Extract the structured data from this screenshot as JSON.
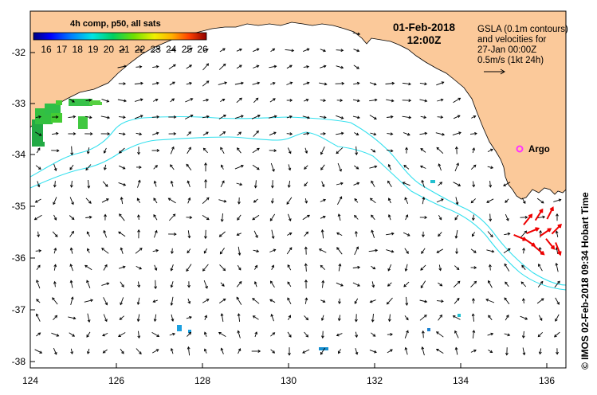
{
  "map": {
    "title": "4h comp, p50, all sats",
    "date": "01-Feb-2018",
    "time": "12:00Z",
    "info_lines": [
      "GSLA (0.1m contours)",
      "and velocities for",
      "27-Jan 00:00Z",
      "0.5m/s (1kt 24h)"
    ],
    "argo_label": "Argo",
    "credit": "© IMOS 02-Feb-2018 09:34 Hobart Time",
    "longitude_ticks": [
      "124",
      "126",
      "128",
      "130",
      "132",
      "134",
      "136"
    ],
    "latitude_ticks": [
      "-32",
      "-33",
      "-34",
      "-35",
      "-36",
      "-37",
      "-38"
    ],
    "colorbar": {
      "labels": [
        "16",
        "17",
        "18",
        "19",
        "20",
        "21",
        "22",
        "23",
        "24",
        "25",
        "26"
      ],
      "unit_range": [
        15.5,
        26.5
      ]
    },
    "colors": {
      "land": "#fbc99a",
      "contour": "#33e0ee",
      "argo": "#ff33ff",
      "fast_vectors": "#ee0000"
    }
  }
}
